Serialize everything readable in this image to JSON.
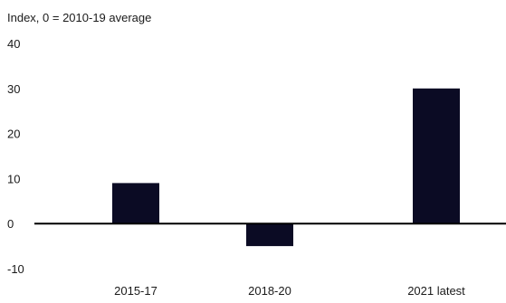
{
  "chart_data": {
    "type": "bar",
    "ylabel": "Index, 0 = 2010-19 average",
    "categories": [
      "2015-17",
      "2018-20",
      "2021 latest"
    ],
    "values": [
      9,
      -5,
      30
    ],
    "ylim": [
      -10,
      40
    ],
    "yticks": [
      -10,
      0,
      10,
      20,
      30,
      40
    ],
    "bar_color": "#0b0b24",
    "grid": false
  }
}
